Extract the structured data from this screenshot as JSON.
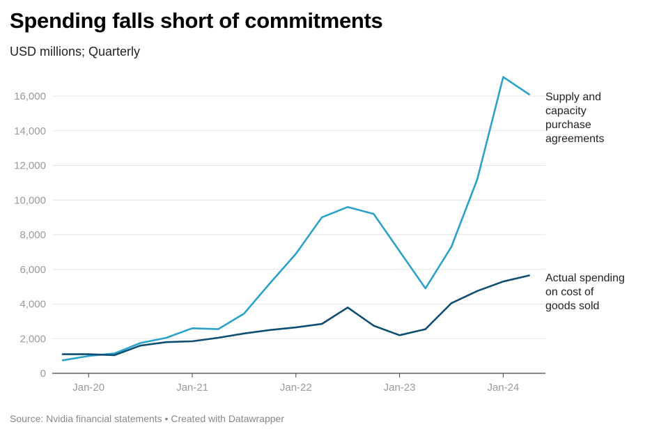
{
  "header": {
    "title": "Spending falls short of commitments",
    "subtitle": "USD millions; Quarterly"
  },
  "footer": {
    "source": "Source: Nvidia financial statements • Created with Datawrapper"
  },
  "chart_data": {
    "type": "line",
    "title": "Spending falls short of commitments",
    "subtitle": "USD millions; Quarterly",
    "xlabel": "",
    "ylabel": "",
    "ylim": [
      0,
      17000
    ],
    "yticks": [
      0,
      2000,
      4000,
      6000,
      8000,
      10000,
      12000,
      14000,
      16000
    ],
    "ytick_labels": [
      "0",
      "2,000",
      "4,000",
      "6,000",
      "8,000",
      "10,000",
      "12,000",
      "14,000",
      "16,000"
    ],
    "xtick_labels": [
      "Jan-20",
      "Jan-21",
      "Jan-22",
      "Jan-23",
      "Jan-24"
    ],
    "grid": true,
    "legend": "direct labels at right",
    "series": [
      {
        "name": "Supply and capacity purchase agreements",
        "label_lines": [
          "Supply and",
          "capacity",
          "purchase",
          "agreements"
        ],
        "color": "#2aa1c9",
        "values": [
          750,
          1000,
          1150,
          1750,
          2050,
          2600,
          2550,
          3450,
          5200,
          6900,
          9000,
          9600,
          9200,
          7050,
          4900,
          7300,
          11200,
          17100,
          16100
        ]
      },
      {
        "name": "Actual spending on cost of goods sold",
        "label_lines": [
          "Actual spending",
          "on cost of",
          "goods sold"
        ],
        "color": "#0d4e72",
        "values": [
          1100,
          1100,
          1050,
          1600,
          1800,
          1850,
          2050,
          2300,
          2500,
          2650,
          2850,
          3800,
          2750,
          2200,
          2550,
          4050,
          4750,
          5300,
          5650
        ]
      }
    ]
  }
}
